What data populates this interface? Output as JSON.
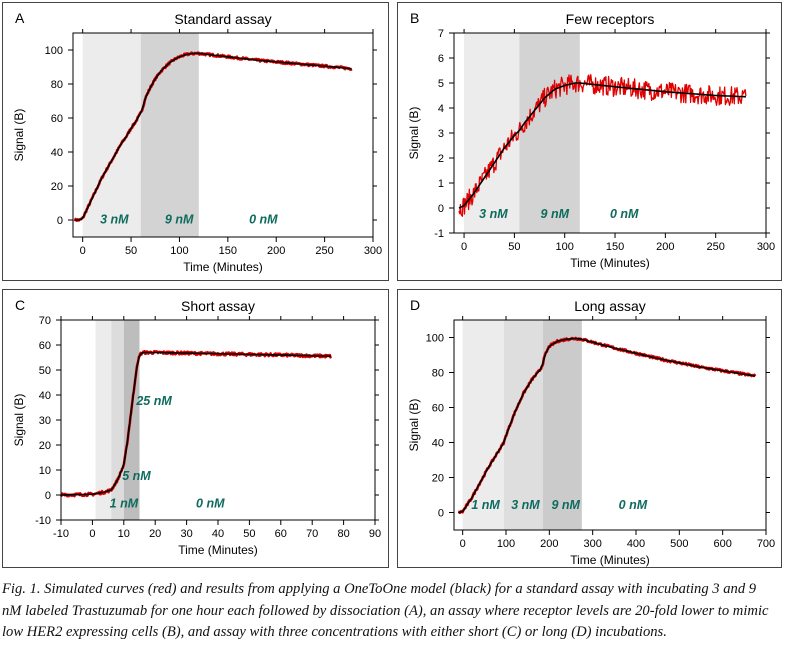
{
  "chart_data": [
    {
      "type": "line",
      "panel_letter": "A",
      "title": "Standard assay",
      "xlabel": "Time (Minutes)",
      "ylabel": "Signal (B)",
      "xlim": [
        -10,
        300
      ],
      "ylim": [
        -10,
        110
      ],
      "xticks": [
        0,
        50,
        100,
        150,
        200,
        250,
        300
      ],
      "yticks": [
        0,
        20,
        40,
        60,
        80,
        100
      ],
      "phases": [
        {
          "start": 0,
          "end": 60,
          "label": "3 nM",
          "label_x": 18,
          "label_y": -2,
          "shade": "#ececec"
        },
        {
          "start": 60,
          "end": 120,
          "label": "9 nM",
          "label_x": 85,
          "label_y": -2,
          "shade": "#d3d3d3"
        },
        {
          "start": 120,
          "end": 280,
          "label": "0 nM",
          "label_x": 172,
          "label_y": -2,
          "shade": "none"
        }
      ],
      "series": [
        {
          "role": "simulated",
          "color": "#e00000",
          "noise": 0.5,
          "points": [
            [
              -8,
              0
            ],
            [
              -3,
              0
            ],
            [
              0,
              1
            ],
            [
              5,
              7
            ],
            [
              10,
              13
            ],
            [
              15,
              19
            ],
            [
              20,
              25
            ],
            [
              25,
              30
            ],
            [
              30,
              35
            ],
            [
              35,
              40
            ],
            [
              40,
              45
            ],
            [
              45,
              49
            ],
            [
              50,
              54
            ],
            [
              55,
              58
            ],
            [
              60,
              63
            ],
            [
              62,
              66
            ],
            [
              65,
              72
            ],
            [
              70,
              78
            ],
            [
              75,
              83
            ],
            [
              80,
              87
            ],
            [
              85,
              90
            ],
            [
              90,
              92.5
            ],
            [
              95,
              94.5
            ],
            [
              100,
              96
            ],
            [
              105,
              97
            ],
            [
              110,
              97.7
            ],
            [
              115,
              98
            ],
            [
              120,
              98
            ],
            [
              150,
              96
            ],
            [
              180,
              94
            ],
            [
              210,
              92.5
            ],
            [
              240,
              91
            ],
            [
              260,
              90
            ],
            [
              278,
              89
            ]
          ]
        },
        {
          "role": "model",
          "color": "#000000",
          "noise": 0,
          "points": [
            [
              -8,
              0
            ],
            [
              -3,
              0
            ],
            [
              0,
              1
            ],
            [
              5,
              7
            ],
            [
              10,
              13
            ],
            [
              15,
              19
            ],
            [
              20,
              25
            ],
            [
              25,
              30
            ],
            [
              30,
              35
            ],
            [
              35,
              40
            ],
            [
              40,
              45
            ],
            [
              45,
              49
            ],
            [
              50,
              54
            ],
            [
              55,
              58
            ],
            [
              60,
              63
            ],
            [
              62,
              66
            ],
            [
              65,
              72
            ],
            [
              70,
              78
            ],
            [
              75,
              83
            ],
            [
              80,
              87
            ],
            [
              85,
              90
            ],
            [
              90,
              92.5
            ],
            [
              95,
              94.5
            ],
            [
              100,
              96
            ],
            [
              105,
              97
            ],
            [
              110,
              97.7
            ],
            [
              115,
              98
            ],
            [
              120,
              98
            ],
            [
              150,
              96
            ],
            [
              180,
              94
            ],
            [
              210,
              92.5
            ],
            [
              240,
              91
            ],
            [
              260,
              90
            ],
            [
              278,
              89
            ]
          ]
        }
      ]
    },
    {
      "type": "line",
      "panel_letter": "B",
      "title": "Few receptors",
      "xlabel": "Time (Minutes)",
      "ylabel": "Signal (B)",
      "xlim": [
        -10,
        300
      ],
      "ylim": [
        -1,
        7
      ],
      "xticks": [
        0,
        50,
        100,
        150,
        200,
        250,
        300
      ],
      "yticks": [
        -1,
        0,
        1,
        2,
        3,
        4,
        5,
        6,
        7
      ],
      "phases": [
        {
          "start": 0,
          "end": 55,
          "label": "3 nM",
          "label_x": 15,
          "label_y": -0.4,
          "shade": "#ececec"
        },
        {
          "start": 55,
          "end": 115,
          "label": "9 nM",
          "label_x": 76,
          "label_y": -0.4,
          "shade": "#d3d3d3"
        },
        {
          "start": 115,
          "end": 280,
          "label": "0 nM",
          "label_x": 145,
          "label_y": -0.4,
          "shade": "none"
        }
      ],
      "series": [
        {
          "role": "simulated",
          "color": "#e00000",
          "noise": 0.55,
          "points": [
            [
              -5,
              0
            ],
            [
              0,
              0.1
            ],
            [
              10,
              0.6
            ],
            [
              20,
              1.2
            ],
            [
              30,
              1.8
            ],
            [
              40,
              2.4
            ],
            [
              50,
              2.9
            ],
            [
              55,
              3.1
            ],
            [
              60,
              3.4
            ],
            [
              70,
              3.9
            ],
            [
              80,
              4.4
            ],
            [
              90,
              4.75
            ],
            [
              100,
              4.9
            ],
            [
              110,
              5.0
            ],
            [
              115,
              5.0
            ],
            [
              150,
              4.85
            ],
            [
              200,
              4.65
            ],
            [
              250,
              4.5
            ],
            [
              280,
              4.45
            ]
          ]
        },
        {
          "role": "model",
          "color": "#000000",
          "noise": 0,
          "points": [
            [
              -5,
              0
            ],
            [
              0,
              0.1
            ],
            [
              10,
              0.6
            ],
            [
              20,
              1.2
            ],
            [
              30,
              1.8
            ],
            [
              40,
              2.4
            ],
            [
              50,
              2.9
            ],
            [
              55,
              3.1
            ],
            [
              60,
              3.4
            ],
            [
              70,
              3.9
            ],
            [
              80,
              4.4
            ],
            [
              90,
              4.75
            ],
            [
              100,
              4.9
            ],
            [
              110,
              5.0
            ],
            [
              115,
              5.0
            ],
            [
              150,
              4.85
            ],
            [
              200,
              4.65
            ],
            [
              250,
              4.5
            ],
            [
              280,
              4.45
            ]
          ]
        }
      ]
    },
    {
      "type": "line",
      "panel_letter": "C",
      "title": "Short assay",
      "xlabel": "Time (Minutes)",
      "ylabel": "Signal (B)",
      "xlim": [
        -10,
        90
      ],
      "ylim": [
        -10,
        70
      ],
      "xticks": [
        -10,
        0,
        10,
        20,
        30,
        40,
        50,
        60,
        70,
        80,
        90
      ],
      "yticks": [
        -10,
        0,
        10,
        20,
        30,
        40,
        50,
        60,
        70
      ],
      "phases": [
        {
          "start": 1,
          "end": 6,
          "label": "1 nM",
          "label_x": 5.5,
          "label_y": -5,
          "shade": "#ececec"
        },
        {
          "start": 6,
          "end": 10,
          "label": "5 nM",
          "label_x": 9.5,
          "label_y": 6,
          "shade": "#dcdcdc"
        },
        {
          "start": 10,
          "end": 15,
          "label": "25 nM",
          "label_x": 14,
          "label_y": 36,
          "shade": "#bdbdbd"
        },
        {
          "start": 15,
          "end": 76,
          "label": "0 nM",
          "label_x": 33,
          "label_y": -5,
          "shade": "none"
        }
      ],
      "series": [
        {
          "role": "simulated",
          "color": "#e00000",
          "noise": 0.6,
          "points": [
            [
              -10,
              0
            ],
            [
              0,
              0.3
            ],
            [
              1,
              0.5
            ],
            [
              4,
              1.2
            ],
            [
              6,
              2
            ],
            [
              8,
              6
            ],
            [
              10,
              12
            ],
            [
              11,
              20
            ],
            [
              12,
              30
            ],
            [
              13,
              40
            ],
            [
              14,
              50
            ],
            [
              15,
              56
            ],
            [
              16,
              57
            ],
            [
              20,
              57
            ],
            [
              40,
              56.5
            ],
            [
              60,
              56
            ],
            [
              76,
              55.5
            ]
          ]
        },
        {
          "role": "model",
          "color": "#000000",
          "noise": 0,
          "points": [
            [
              -10,
              0
            ],
            [
              0,
              0.3
            ],
            [
              1,
              0.5
            ],
            [
              4,
              1.2
            ],
            [
              6,
              2
            ],
            [
              8,
              6
            ],
            [
              10,
              12
            ],
            [
              11,
              20
            ],
            [
              12,
              30
            ],
            [
              13,
              40
            ],
            [
              14,
              50
            ],
            [
              15,
              56
            ],
            [
              16,
              57
            ],
            [
              20,
              57
            ],
            [
              40,
              56.5
            ],
            [
              60,
              56
            ],
            [
              76,
              55.5
            ]
          ]
        }
      ]
    },
    {
      "type": "line",
      "panel_letter": "D",
      "title": "Long assay",
      "xlabel": "Time (Minutes)",
      "ylabel": "Signal (B)",
      "xlim": [
        -20,
        700
      ],
      "ylim": [
        -10,
        110
      ],
      "xticks": [
        0,
        100,
        200,
        300,
        400,
        500,
        600,
        700
      ],
      "yticks": [
        0,
        20,
        40,
        60,
        80,
        100
      ],
      "phases": [
        {
          "start": 0,
          "end": 95,
          "label": "1 nM",
          "label_x": 20,
          "label_y": 2,
          "shade": "#ececec"
        },
        {
          "start": 95,
          "end": 185,
          "label": "3 nM",
          "label_x": 112,
          "label_y": 2,
          "shade": "#dedede"
        },
        {
          "start": 185,
          "end": 275,
          "label": "9 nM",
          "label_x": 205,
          "label_y": 2,
          "shade": "#cbcbcb"
        },
        {
          "start": 275,
          "end": 680,
          "label": "0 nM",
          "label_x": 360,
          "label_y": 2,
          "shade": "none"
        }
      ],
      "series": [
        {
          "role": "simulated",
          "color": "#e00000",
          "noise": 0.5,
          "points": [
            [
              -10,
              0
            ],
            [
              0,
              0.5
            ],
            [
              20,
              8
            ],
            [
              40,
              17
            ],
            [
              60,
              26
            ],
            [
              80,
              34
            ],
            [
              95,
              40
            ],
            [
              100,
              44
            ],
            [
              120,
              57
            ],
            [
              140,
              68
            ],
            [
              160,
              76
            ],
            [
              180,
              82
            ],
            [
              185,
              85
            ],
            [
              190,
              90
            ],
            [
              200,
              95
            ],
            [
              220,
              98
            ],
            [
              240,
              99
            ],
            [
              260,
              99.5
            ],
            [
              275,
              99
            ],
            [
              350,
              94
            ],
            [
              450,
              88
            ],
            [
              550,
              83
            ],
            [
              650,
              79
            ],
            [
              675,
              78
            ]
          ]
        },
        {
          "role": "model",
          "color": "#000000",
          "noise": 0,
          "points": [
            [
              -10,
              0
            ],
            [
              0,
              0.5
            ],
            [
              20,
              8
            ],
            [
              40,
              17
            ],
            [
              60,
              26
            ],
            [
              80,
              34
            ],
            [
              95,
              40
            ],
            [
              100,
              44
            ],
            [
              120,
              57
            ],
            [
              140,
              68
            ],
            [
              160,
              76
            ],
            [
              180,
              82
            ],
            [
              185,
              85
            ],
            [
              190,
              90
            ],
            [
              200,
              95
            ],
            [
              220,
              98
            ],
            [
              240,
              99
            ],
            [
              260,
              99.5
            ],
            [
              275,
              99
            ],
            [
              350,
              94
            ],
            [
              450,
              88
            ],
            [
              550,
              83
            ],
            [
              650,
              79
            ],
            [
              675,
              78
            ]
          ]
        }
      ]
    }
  ],
  "caption": {
    "lines": [
      "Fig. 1. Simulated curves (red) and results from applying a OneToOne model (black) for a standard assay with incubating 3 and 9",
      "nM labeled Trastuzumab for one hour each followed by dissociation (A), an assay where receptor levels are 20-fold lower to mimic",
      "low HER2 expressing cells (B), and assay with three concentrations with either short (C) or long (D) incubations."
    ]
  },
  "colors": {
    "phase_label": "#0e6b5e",
    "simulated": "#e00000",
    "model": "#000000"
  }
}
